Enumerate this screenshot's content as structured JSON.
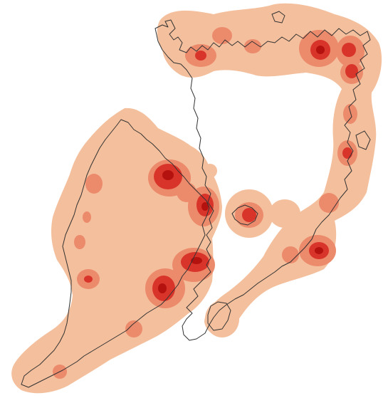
{
  "map": {
    "type": "density-heatmap",
    "palette": {
      "background": "#ffffff",
      "low": "#f4bf9c",
      "medium": "#ec8a6c",
      "high": "#d9342a",
      "peak": "#b3120f",
      "coastline": "#333333"
    },
    "hotspot_levels": [
      "low",
      "medium",
      "high",
      "peak"
    ],
    "legend": null,
    "title": ""
  }
}
